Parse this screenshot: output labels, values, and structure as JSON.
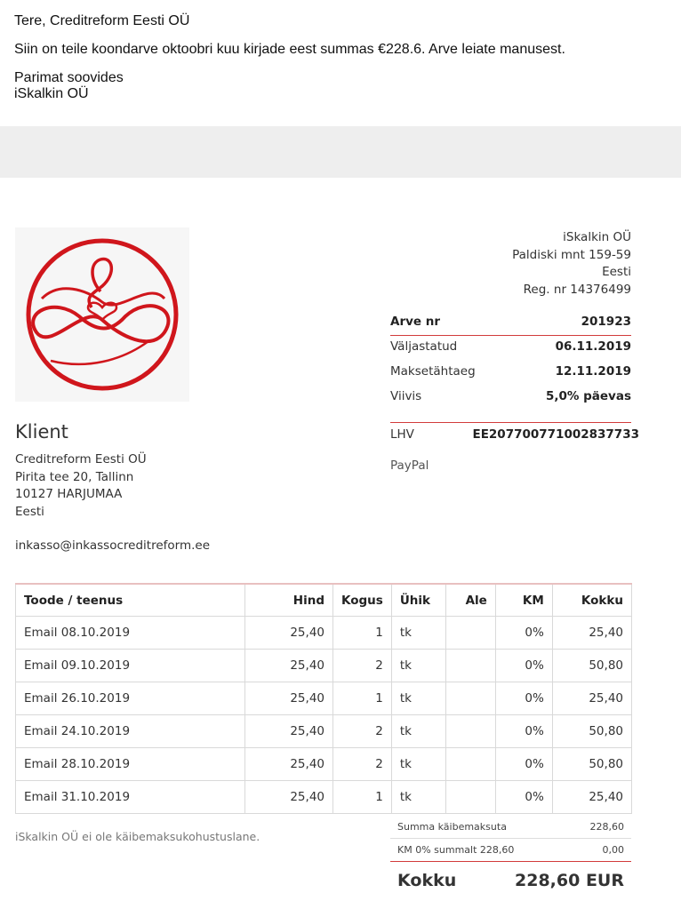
{
  "email": {
    "greeting": "Tere, Creditreform Eesti OÜ",
    "body": "Siin on teile koondarve oktoobri kuu kirjade eest summas €228.6. Arve leiate manusest.",
    "closing": "Parimat soovides",
    "signature": "iSkalkin OÜ"
  },
  "company": {
    "name": "iSkalkin OÜ",
    "address": "Paldiski mnt 159-59",
    "country": "Eesti",
    "reg": "Reg. nr 14376499"
  },
  "invoice_meta": [
    {
      "label": "Arve nr",
      "value": "201923"
    },
    {
      "label": "Väljastatud",
      "value": "06.11.2019"
    },
    {
      "label": "Maksetähtaeg",
      "value": "12.11.2019"
    },
    {
      "label": "Viivis",
      "value": "5,0% päevas"
    }
  ],
  "client": {
    "title": "Klient",
    "name": "Creditreform Eesti OÜ",
    "address": "Pirita tee 20, Tallinn",
    "city": "10127 HARJUMAA",
    "country": "Eesti",
    "email": "inkasso@inkassocreditreform.ee"
  },
  "bank": {
    "label": "LHV",
    "account": "EE207700771002837733"
  },
  "paypal": "PayPal",
  "table": {
    "headers": [
      "Toode / teenus",
      "Hind",
      "Kogus",
      "Ühik",
      "Ale",
      "KM",
      "Kokku"
    ],
    "rows": [
      [
        "Email 08.10.2019",
        "25,40",
        "1",
        "tk",
        "",
        "0%",
        "25,40"
      ],
      [
        "Email 09.10.2019",
        "25,40",
        "2",
        "tk",
        "",
        "0%",
        "50,80"
      ],
      [
        "Email 26.10.2019",
        "25,40",
        "1",
        "tk",
        "",
        "0%",
        "25,40"
      ],
      [
        "Email 24.10.2019",
        "25,40",
        "2",
        "tk",
        "",
        "0%",
        "50,80"
      ],
      [
        "Email 28.10.2019",
        "25,40",
        "2",
        "tk",
        "",
        "0%",
        "50,80"
      ],
      [
        "Email 31.10.2019",
        "25,40",
        "1",
        "tk",
        "",
        "0%",
        "25,40"
      ]
    ]
  },
  "note": "iSkalkin OÜ ei ole käibemaksukohustuslane.",
  "totals": {
    "subtotal_label": "Summa käibemaksuta",
    "subtotal_value": "228,60",
    "vat_label": "KM 0% summalt 228,60",
    "vat_value": "0,00",
    "grand_label": "Kokku",
    "grand_value": "228,60 EUR"
  },
  "colors": {
    "accent": "#d0161c",
    "band": "#eeeeee"
  },
  "icons": {
    "logo": "meditation-heart-logo"
  }
}
